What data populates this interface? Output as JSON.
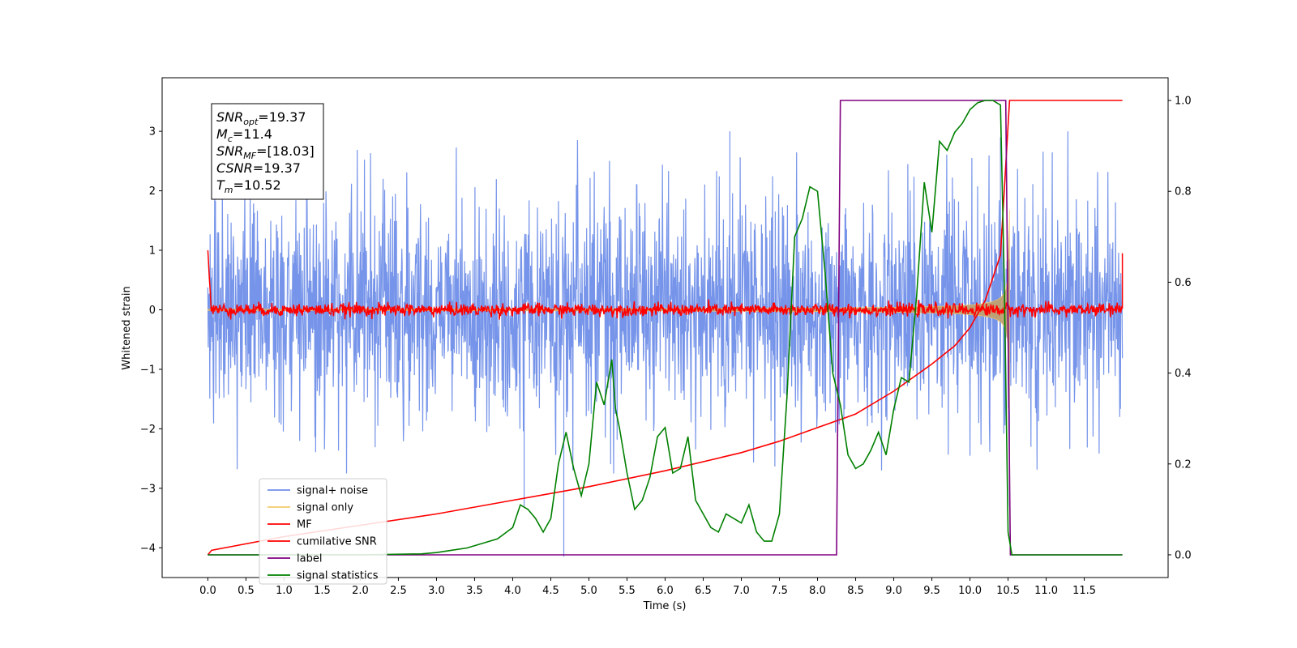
{
  "chart_data": {
    "type": "line",
    "title": "",
    "xlabel": "Time (s)",
    "ylabel": "Whitened strain",
    "y2label": "",
    "xlim": [
      -0.6,
      12.6
    ],
    "ylim": [
      -4.5,
      3.9
    ],
    "y2lim": [
      -0.05,
      1.05
    ],
    "xticks": [
      "0.0",
      "0.5",
      "1.0",
      "1.5",
      "2.0",
      "2.5",
      "3.0",
      "3.5",
      "4.0",
      "4.5",
      "5.0",
      "5.5",
      "6.0",
      "6.5",
      "7.0",
      "7.5",
      "8.0",
      "8.5",
      "9.0",
      "9.5",
      "10.0",
      "10.5",
      "11.0",
      "11.5"
    ],
    "yticks": [
      "3",
      "2",
      "1",
      "0",
      "−1",
      "−2",
      "−3",
      "−4"
    ],
    "y2ticks": [
      "0.0",
      "0.2",
      "0.4",
      "0.6",
      "0.8",
      "1.0"
    ],
    "grid": false,
    "legend": {
      "placement": "lower-left",
      "entries": [
        "signal+ noise",
        "signal only",
        "MF",
        "cumilative SNR",
        "label",
        "signal statistics"
      ]
    },
    "annotation": {
      "lines": [
        {
          "base": "SNR",
          "sub": "opt",
          "value": "=19.37"
        },
        {
          "base": "M",
          "sub": "c",
          "value": "=11.4"
        },
        {
          "base": "SNR",
          "sub": "MF",
          "value": "=[18.03]"
        },
        {
          "base": "CSNR",
          "sub": "",
          "value": "=19.37"
        },
        {
          "base": "T",
          "sub": "m",
          "value": "=10.52"
        }
      ]
    },
    "series": [
      {
        "name": "signal+ noise",
        "axis": "left",
        "color": "#6f8ee8",
        "kind": "noise",
        "t_start": 0.0,
        "t_end": 12.0,
        "band": [
          -1.5,
          1.5
        ],
        "extremes": [
          -4.15,
          3.0
        ]
      },
      {
        "name": "signal only",
        "axis": "left",
        "color": "#f5c96b",
        "kind": "chirp",
        "t_start": 0.0,
        "t_end": 10.52,
        "amplitude_end": 2.8
      },
      {
        "name": "MF",
        "axis": "left",
        "color": "#ff0000",
        "kind": "mf",
        "t_start": 0.0,
        "t_end": 12.0,
        "band": [
          -0.12,
          0.12
        ],
        "start_value": 1.0,
        "end_value": 0.95
      },
      {
        "name": "cumilative SNR",
        "axis": "right",
        "color": "#ff0000",
        "x": [
          0.0,
          0.05,
          1.0,
          2.0,
          3.0,
          4.0,
          5.0,
          6.0,
          7.0,
          7.5,
          8.0,
          8.5,
          9.0,
          9.5,
          9.8,
          10.0,
          10.2,
          10.4,
          10.52,
          12.0
        ],
        "y": [
          0.0,
          0.01,
          0.04,
          0.065,
          0.09,
          0.12,
          0.15,
          0.185,
          0.225,
          0.25,
          0.28,
          0.31,
          0.36,
          0.42,
          0.46,
          0.5,
          0.56,
          0.66,
          1.0,
          1.0
        ]
      },
      {
        "name": "label",
        "axis": "right",
        "color": "#800080",
        "x": [
          0.0,
          8.25,
          8.3,
          10.47,
          10.53,
          12.0
        ],
        "y": [
          0.0,
          0.0,
          1.0,
          1.0,
          0.0,
          0.0
        ]
      },
      {
        "name": "signal statistics",
        "axis": "right",
        "color": "#008000",
        "x": [
          0.0,
          1.0,
          2.0,
          2.8,
          3.0,
          3.2,
          3.4,
          3.6,
          3.8,
          4.0,
          4.1,
          4.2,
          4.3,
          4.4,
          4.5,
          4.6,
          4.7,
          4.8,
          4.9,
          5.0,
          5.1,
          5.2,
          5.3,
          5.35,
          5.4,
          5.5,
          5.6,
          5.7,
          5.8,
          5.9,
          6.0,
          6.1,
          6.2,
          6.3,
          6.4,
          6.5,
          6.6,
          6.7,
          6.8,
          6.9,
          7.0,
          7.1,
          7.2,
          7.3,
          7.4,
          7.5,
          7.6,
          7.7,
          7.8,
          7.9,
          8.0,
          8.1,
          8.2,
          8.3,
          8.4,
          8.5,
          8.6,
          8.7,
          8.8,
          8.9,
          9.0,
          9.1,
          9.2,
          9.3,
          9.4,
          9.5,
          9.6,
          9.7,
          9.8,
          9.9,
          10.0,
          10.1,
          10.2,
          10.3,
          10.4,
          10.45,
          10.5,
          10.55,
          10.6,
          11.0,
          12.0
        ],
        "y": [
          0.0,
          0.0,
          0.0,
          0.002,
          0.005,
          0.01,
          0.015,
          0.025,
          0.035,
          0.06,
          0.11,
          0.1,
          0.08,
          0.05,
          0.08,
          0.2,
          0.27,
          0.19,
          0.13,
          0.2,
          0.38,
          0.33,
          0.43,
          0.32,
          0.28,
          0.18,
          0.1,
          0.12,
          0.17,
          0.26,
          0.28,
          0.18,
          0.19,
          0.26,
          0.12,
          0.09,
          0.06,
          0.05,
          0.09,
          0.08,
          0.07,
          0.11,
          0.05,
          0.03,
          0.03,
          0.09,
          0.35,
          0.7,
          0.74,
          0.81,
          0.8,
          0.62,
          0.4,
          0.33,
          0.22,
          0.19,
          0.2,
          0.23,
          0.27,
          0.22,
          0.32,
          0.39,
          0.38,
          0.57,
          0.82,
          0.71,
          0.91,
          0.89,
          0.93,
          0.95,
          0.98,
          0.995,
          1.0,
          1.0,
          0.99,
          0.6,
          0.05,
          0.0,
          0.0,
          0.0,
          0.0
        ]
      }
    ]
  }
}
